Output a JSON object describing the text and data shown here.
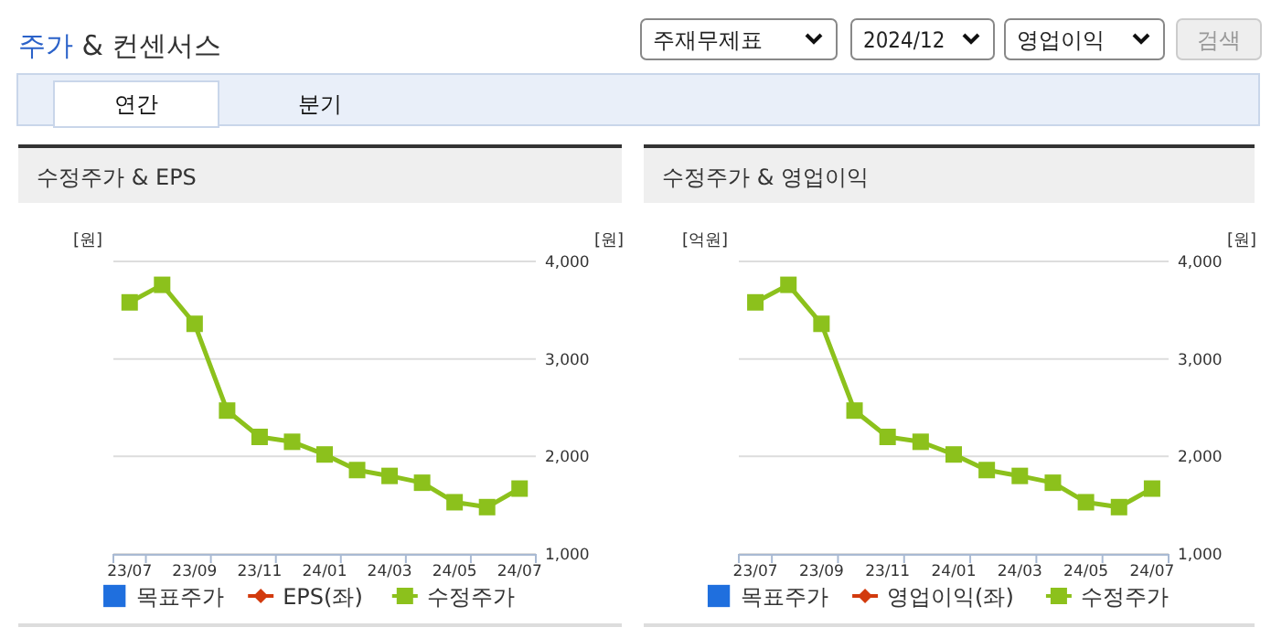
{
  "chart_data": [
    {
      "type": "other",
      "title": "주가 & 컨센서스",
      "annotations": [
        "주재무제표",
        "2024/12",
        "영업이익",
        "검색",
        "연간",
        "분기"
      ]
    },
    {
      "type": "line",
      "title": "수정주가 & EPS",
      "ylabel": "[원]",
      "y2label": "[원]",
      "categories": [
        "23/07",
        null,
        "23/09",
        null,
        "23/11",
        null,
        "24/01",
        null,
        "24/03",
        null,
        "24/05",
        null,
        "24/07"
      ],
      "series": [
        {
          "name": "목표주가",
          "type": "scatter",
          "marker": "square",
          "color": "#1f6fde",
          "values": [
            null,
            null,
            null,
            null,
            null,
            null,
            null,
            null,
            null,
            null,
            null,
            null,
            null
          ]
        },
        {
          "name": "EPS(좌)",
          "type": "line",
          "marker": "diamond",
          "color": "#d23a0d",
          "values": [
            null,
            null,
            null,
            null,
            null,
            null,
            null,
            null,
            null,
            null,
            null,
            null,
            null
          ]
        },
        {
          "name": "수정주가",
          "type": "line",
          "marker": "square",
          "color": "#8cc11c",
          "axis": "y2",
          "values": [
            3580,
            3760,
            3360,
            2470,
            2200,
            2150,
            2020,
            1860,
            1800,
            1730,
            1530,
            1480,
            1670
          ]
        }
      ],
      "y2lim": [
        1000,
        4000
      ],
      "y2ticks": [
        {
          "value": 1000,
          "label": "1,000"
        },
        {
          "value": 2000,
          "label": "2,000"
        },
        {
          "value": 3000,
          "label": "3,000"
        },
        {
          "value": 4000,
          "label": "4,000"
        }
      ],
      "grid": "y",
      "legend": "bottom",
      "tick_labels": "x"
    },
    {
      "type": "line",
      "title": "수정주가 & 영업이익",
      "ylabel": "[억원]",
      "y2label": "[원]",
      "categories": [
        "23/07",
        null,
        "23/09",
        null,
        "23/11",
        null,
        "24/01",
        null,
        "24/03",
        null,
        "24/05",
        null,
        "24/07"
      ],
      "series": [
        {
          "name": "목표주가",
          "type": "scatter",
          "marker": "square",
          "color": "#1f6fde",
          "values": [
            null,
            null,
            null,
            null,
            null,
            null,
            null,
            null,
            null,
            null,
            null,
            null,
            null
          ]
        },
        {
          "name": "영업이익(좌)",
          "type": "line",
          "marker": "diamond",
          "color": "#d23a0d",
          "values": [
            null,
            null,
            null,
            null,
            null,
            null,
            null,
            null,
            null,
            null,
            null,
            null,
            null
          ]
        },
        {
          "name": "수정주가",
          "type": "line",
          "marker": "square",
          "color": "#8cc11c",
          "axis": "y2",
          "values": [
            3580,
            3760,
            3360,
            2470,
            2200,
            2150,
            2020,
            1860,
            1800,
            1730,
            1530,
            1480,
            1670
          ]
        }
      ],
      "y2lim": [
        1000,
        4000
      ],
      "y2ticks": [
        {
          "value": 1000,
          "label": "1,000"
        },
        {
          "value": 2000,
          "label": "2,000"
        },
        {
          "value": 3000,
          "label": "3,000"
        },
        {
          "value": 4000,
          "label": "4,000"
        }
      ],
      "grid": "y",
      "legend": "bottom",
      "tick_labels": "x"
    }
  ]
}
